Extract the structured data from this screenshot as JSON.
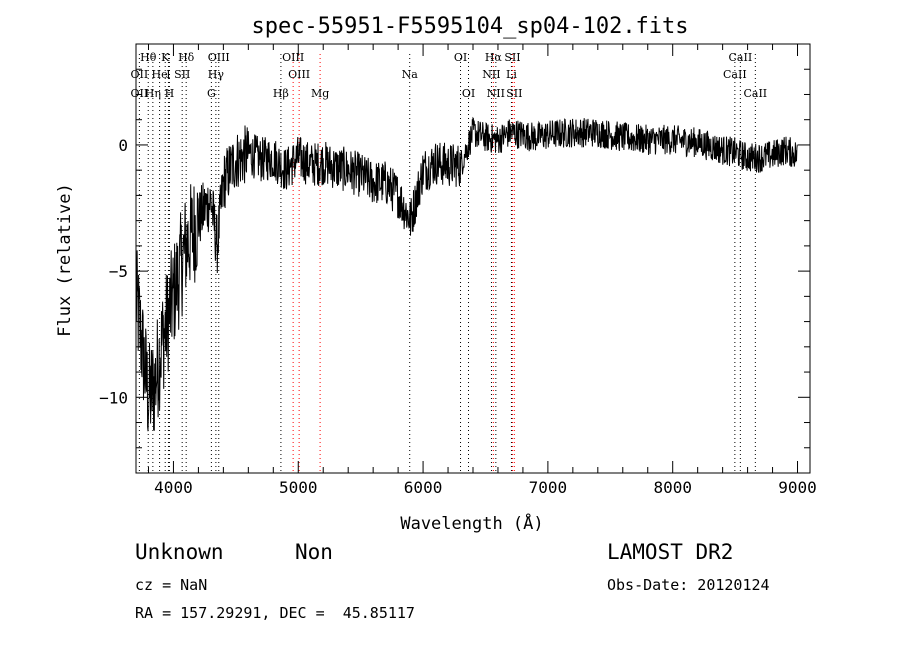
{
  "chart_data": {
    "type": "line",
    "title": "spec-55951-F5595104_sp04-102.fits",
    "xlabel": "Wavelength (Å)",
    "ylabel": "Flux (relative)",
    "xlim": [
      3700,
      9100
    ],
    "ylim": [
      -13,
      4
    ],
    "x_ticks": [
      4000,
      5000,
      6000,
      7000,
      8000,
      9000
    ],
    "y_ticks": [
      0,
      -5,
      -10
    ],
    "grid": false,
    "series": [
      {
        "color": "#000000",
        "x": [
          3700,
          3750,
          3800,
          3850,
          3900,
          3950,
          4000,
          4050,
          4100,
          4150,
          4200,
          4250,
          4300,
          4350,
          4400,
          4450,
          4500,
          4550,
          4600,
          4700,
          4800,
          4900,
          5000,
          5100,
          5200,
          5300,
          5400,
          5500,
          5600,
          5700,
          5800,
          5900,
          6000,
          6100,
          6200,
          6300,
          6400,
          6500,
          6600,
          6700,
          6800,
          6900,
          7000,
          7200,
          7400,
          7600,
          7800,
          8000,
          8200,
          8400,
          8500,
          8600,
          8700,
          8800,
          8900,
          9000
        ],
        "y": [
          -6,
          -8,
          -10,
          -9.5,
          -8,
          -7,
          -6,
          -5,
          -4,
          -3.5,
          -3,
          -2.5,
          -2.2,
          -4,
          -1.5,
          -1,
          -0.6,
          -0.5,
          -0.3,
          -0.6,
          -0.5,
          -1,
          -0.5,
          -0.8,
          -0.7,
          -0.9,
          -1,
          -1.2,
          -1.5,
          -1.5,
          -2,
          -3,
          -1,
          -0.7,
          -0.8,
          -0.8,
          0.5,
          0.3,
          0.2,
          0.5,
          0.4,
          0.3,
          0.4,
          0.5,
          0.5,
          0.3,
          0.2,
          0.2,
          0.1,
          -0.2,
          -0.3,
          -0.5,
          -0.5,
          -0.4,
          -0.2,
          -0.4
        ]
      }
    ],
    "lines": [
      {
        "label": "Hθ",
        "x": 3798,
        "color": "#000000",
        "row": 0
      },
      {
        "label": "K",
        "x": 3934,
        "color": "#000000",
        "row": 0
      },
      {
        "label": "Hδ",
        "x": 4102,
        "color": "#000000",
        "row": 0
      },
      {
        "label": "OIII",
        "x": 4363,
        "color": "#000000",
        "row": 0
      },
      {
        "label": "OIII",
        "x": 4959,
        "color": "#ff0000",
        "row": 0
      },
      {
        "label": "OI",
        "x": 6300,
        "color": "#000000",
        "row": 0
      },
      {
        "label": "Hα",
        "x": 6563,
        "color": "#ff0000",
        "row": 0
      },
      {
        "label": "SII",
        "x": 6716,
        "color": "#ff0000",
        "row": 0
      },
      {
        "label": "CaII",
        "x": 8542,
        "color": "#000000",
        "row": 0
      },
      {
        "label": "OII",
        "x": 3727,
        "color": "#000000",
        "row": 1
      },
      {
        "label": "He",
        "x": 3889,
        "color": "#000000",
        "row": 1
      },
      {
        "label": "I",
        "x": 3960,
        "color": "#000000",
        "row": 1
      },
      {
        "label": "SII",
        "x": 4070,
        "color": "#000000",
        "row": 1
      },
      {
        "label": "Hγ",
        "x": 4340,
        "color": "#000000",
        "row": 1
      },
      {
        "label": "OIII",
        "x": 5007,
        "color": "#ff0000",
        "row": 1
      },
      {
        "label": "Na",
        "x": 5893,
        "color": "#000000",
        "row": 1
      },
      {
        "label": "NII",
        "x": 6548,
        "color": "#000000",
        "row": 1
      },
      {
        "label": "Li",
        "x": 6708,
        "color": "#000000",
        "row": 1
      },
      {
        "label": "CaII",
        "x": 8498,
        "color": "#000000",
        "row": 1
      },
      {
        "label": "OII",
        "x": 3727,
        "color": "#000000",
        "row": 2
      },
      {
        "label": "Hη",
        "x": 3835,
        "color": "#000000",
        "row": 2
      },
      {
        "label": "H",
        "x": 3968,
        "color": "#000000",
        "row": 2
      },
      {
        "label": "G",
        "x": 4304,
        "color": "#000000",
        "row": 2
      },
      {
        "label": "Hβ",
        "x": 4861,
        "color": "#000000",
        "row": 2
      },
      {
        "label": "Mg",
        "x": 5175,
        "color": "#ff0000",
        "row": 2
      },
      {
        "label": "OI",
        "x": 6364,
        "color": "#000000",
        "row": 2
      },
      {
        "label": "NII",
        "x": 6583,
        "color": "#000000",
        "row": 2
      },
      {
        "label": "SII",
        "x": 6731,
        "color": "#ff0000",
        "row": 2
      },
      {
        "label": "CaII",
        "x": 8662,
        "color": "#000000",
        "row": 2
      }
    ]
  },
  "info": {
    "class": "Unknown",
    "subclass": "Non",
    "survey": "LAMOST DR2",
    "cz": "cz = NaN",
    "obsdate": "Obs-Date: 20120124",
    "radec": "RA = 157.29291, DEC =  45.85117"
  }
}
